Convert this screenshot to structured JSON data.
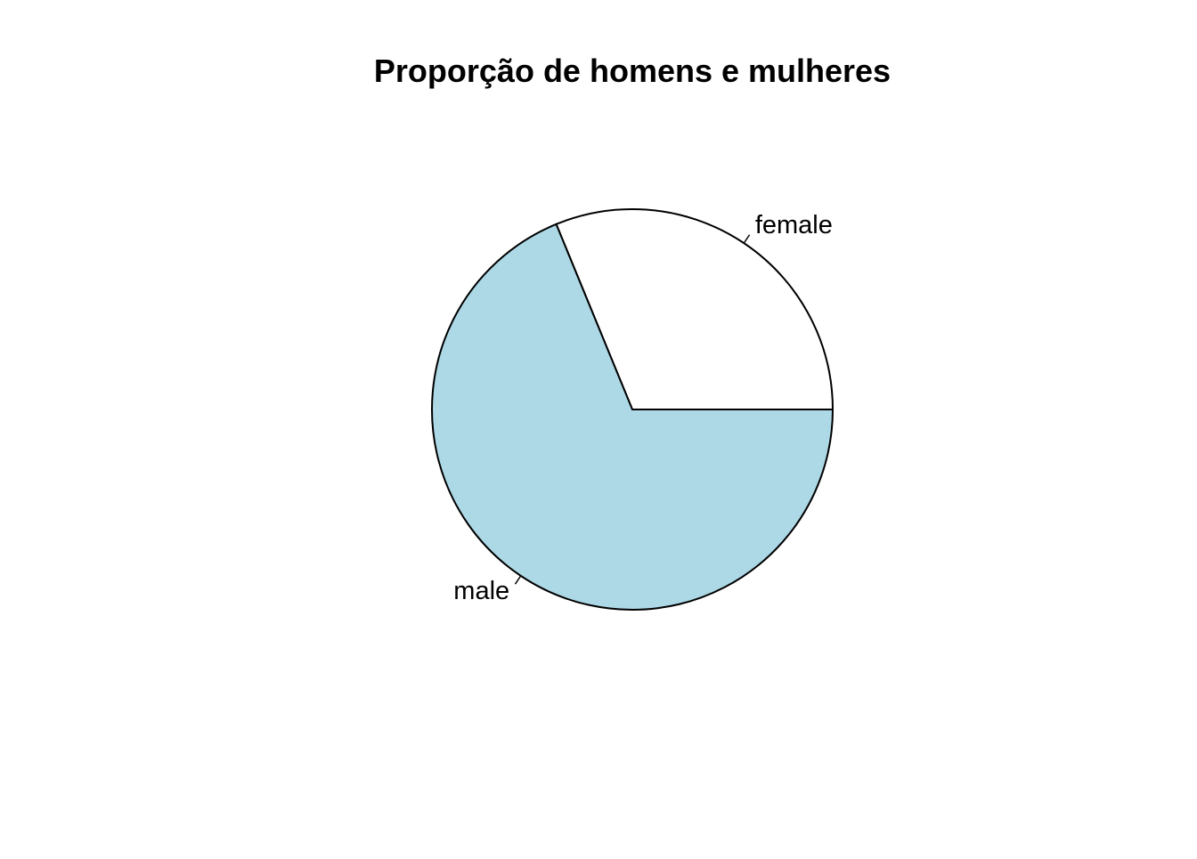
{
  "chart_data": {
    "type": "pie",
    "title": "Proporção de homens e mulheres",
    "categories": [
      "female",
      "male"
    ],
    "values": [
      0.312,
      0.688
    ],
    "colors": [
      "#ffffff",
      "#add8e6"
    ],
    "start_angle_deg": 0,
    "direction": "counterclockwise",
    "border_color": "#000000"
  }
}
